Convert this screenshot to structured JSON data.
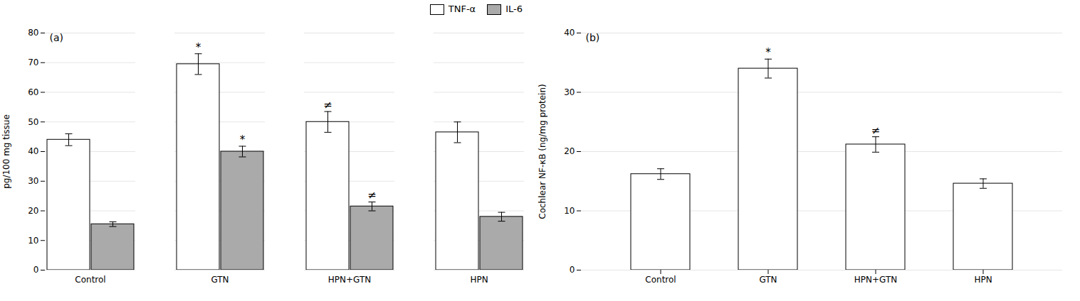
{
  "chart_data": [
    {
      "type": "bar",
      "title": "(a)",
      "categories": [
        "Control",
        "GTN",
        "HPN+GTN",
        "HPN"
      ],
      "series": [
        {
          "name": "TNF-α",
          "color": "#ffffff",
          "values": [
            44.0,
            69.5,
            50.0,
            46.5
          ],
          "errors": [
            2.0,
            3.5,
            3.5,
            3.5
          ],
          "significance": [
            null,
            "*",
            "≠",
            null
          ]
        },
        {
          "name": "IL-6",
          "color": "#aaaaaa",
          "values": [
            15.5,
            40.0,
            21.5,
            18.0
          ],
          "errors": [
            0.8,
            1.8,
            1.5,
            1.5
          ],
          "significance": [
            null,
            "*",
            "≠",
            null
          ]
        }
      ],
      "ylabel": "pg/100 mg tissue",
      "ylim": [
        0,
        80
      ],
      "yticks": [
        0,
        10,
        20,
        30,
        40,
        50,
        60,
        70,
        80
      ],
      "grid": true,
      "legend": "upper right"
    },
    {
      "type": "bar",
      "title": "(b)",
      "categories": [
        "Control",
        "GTN",
        "HPN+GTN",
        "HPN"
      ],
      "values": [
        16.2,
        34.0,
        21.2,
        14.6
      ],
      "errors": [
        0.9,
        1.6,
        1.3,
        0.8
      ],
      "significance": [
        null,
        "*",
        "≠",
        null
      ],
      "color": "#ffffff",
      "ylabel": "Cochlear NF-κB (ng/mg protein)",
      "ylim": [
        0,
        40
      ],
      "yticks": [
        0,
        10,
        20,
        30,
        40
      ],
      "grid": true
    }
  ]
}
